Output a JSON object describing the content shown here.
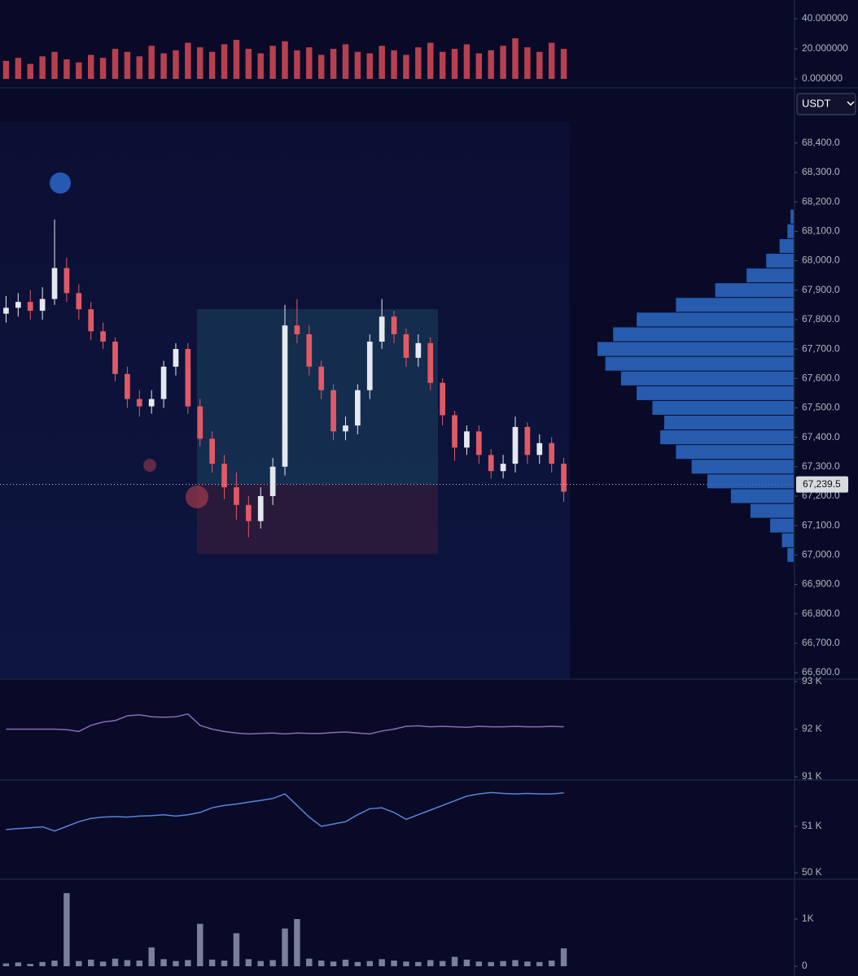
{
  "toolbar": {
    "currency": "USDT"
  },
  "chart_data": [
    {
      "type": "bar",
      "color": "#b8404e",
      "values": [
        12,
        14,
        10,
        15,
        18,
        13,
        11,
        16,
        14,
        20,
        18,
        15,
        22,
        17,
        19,
        24,
        21,
        18,
        23,
        26,
        20,
        17,
        22,
        25,
        19,
        21,
        16,
        20,
        23,
        18,
        17,
        22,
        19,
        16,
        21,
        24,
        18,
        20,
        23,
        17,
        19,
        22,
        27,
        21,
        18,
        24,
        20
      ],
      "ylim": [
        -5.9,
        52.4
      ],
      "yticks": [
        {
          "value": 0,
          "label": "0.000000"
        },
        {
          "value": 20,
          "label": "20.000000"
        },
        {
          "value": 40,
          "label": "40.000000"
        }
      ]
    },
    {
      "type": "candlestick",
      "up_color": "#e6e8f0",
      "down_color": "#e05a66",
      "open": [
        67820,
        67840,
        67860,
        67830,
        67870,
        67975,
        67890,
        67835,
        67760,
        67725,
        67615,
        67530,
        67505,
        67530,
        67640,
        67700,
        67505,
        67395,
        67310,
        67230,
        67170,
        67115,
        67200,
        67300,
        67780,
        67750,
        67640,
        67560,
        67420,
        67440,
        67560,
        67725,
        67810,
        67750,
        67670,
        67720,
        67585,
        67475,
        67365,
        67420,
        67340,
        67285,
        67310,
        67435,
        67340,
        67380,
        67310
      ],
      "high": [
        67880,
        67890,
        67900,
        67910,
        68140,
        68010,
        67920,
        67860,
        67790,
        67740,
        67640,
        67560,
        67560,
        67660,
        67720,
        67720,
        67530,
        67420,
        67340,
        67280,
        67200,
        67230,
        67330,
        67850,
        67870,
        67780,
        67660,
        67580,
        67470,
        67580,
        67750,
        67870,
        67830,
        67770,
        67750,
        67740,
        67600,
        67490,
        67440,
        67440,
        67360,
        67340,
        67470,
        67450,
        67410,
        67400,
        67330
      ],
      "low": [
        67790,
        67810,
        67800,
        67800,
        67850,
        67860,
        67800,
        67730,
        67700,
        67590,
        67500,
        67470,
        67480,
        67500,
        67610,
        67480,
        67370,
        67280,
        67190,
        67120,
        67060,
        67090,
        67170,
        67270,
        67720,
        67610,
        67530,
        67390,
        67390,
        67410,
        67530,
        67700,
        67720,
        67640,
        67640,
        67560,
        67440,
        67320,
        67340,
        67310,
        67260,
        67260,
        67280,
        67310,
        67310,
        67280,
        67180
      ],
      "close": [
        67840,
        67860,
        67830,
        67870,
        67975,
        67890,
        67835,
        67760,
        67725,
        67615,
        67530,
        67505,
        67530,
        67640,
        67700,
        67505,
        67395,
        67310,
        67230,
        67170,
        67115,
        67200,
        67300,
        67780,
        67750,
        67640,
        67560,
        67420,
        67440,
        67560,
        67725,
        67810,
        67750,
        67670,
        67720,
        67585,
        67475,
        67365,
        67420,
        67340,
        67285,
        67310,
        67435,
        67340,
        67380,
        67310,
        67215
      ],
      "last_price": {
        "value": 67239.5,
        "label": "67,239.5"
      },
      "ylim": [
        66578,
        68582
      ],
      "yticks": [
        {
          "value": 66600,
          "label": "66,600.0"
        },
        {
          "value": 66700,
          "label": "66,700.0"
        },
        {
          "value": 66800,
          "label": "66,800.0"
        },
        {
          "value": 66900,
          "label": "66,900.0"
        },
        {
          "value": 67000,
          "label": "67,000.0"
        },
        {
          "value": 67100,
          "label": "67,100.0"
        },
        {
          "value": 67200,
          "label": "67,200.0"
        },
        {
          "value": 67300,
          "label": "67,300.0"
        },
        {
          "value": 67400,
          "label": "67,400.0"
        },
        {
          "value": 67500,
          "label": "67,500.0"
        },
        {
          "value": 67600,
          "label": "67,600.0"
        },
        {
          "value": 67700,
          "label": "67,700.0"
        },
        {
          "value": 67800,
          "label": "67,800.0"
        },
        {
          "value": 67900,
          "label": "67,900.0"
        },
        {
          "value": 68000,
          "label": "68,000.0"
        },
        {
          "value": 68100,
          "label": "68,100.0"
        },
        {
          "value": 68200,
          "label": "68,200.0"
        },
        {
          "value": 68300,
          "label": "68,300.0"
        },
        {
          "value": 68400,
          "label": "68,400.0"
        }
      ]
    },
    {
      "type": "line",
      "color": "#8a6ab8",
      "values": [
        92000,
        92000,
        92000,
        92000,
        92000,
        91990,
        91950,
        92080,
        92150,
        92180,
        92280,
        92300,
        92260,
        92250,
        92260,
        92320,
        92080,
        92000,
        91950,
        91920,
        91900,
        91910,
        91920,
        91900,
        91920,
        91910,
        91910,
        91930,
        91940,
        91920,
        91900,
        91960,
        92000,
        92060,
        92070,
        92050,
        92060,
        92050,
        92040,
        92060,
        92050,
        92050,
        92060,
        92050,
        92050,
        92060,
        92050
      ],
      "ylim": [
        90950,
        93050
      ],
      "yticks": [
        {
          "value": 91000,
          "label": "91 K"
        },
        {
          "value": 92000,
          "label": "92 K"
        },
        {
          "value": 93000,
          "label": "93 K"
        }
      ]
    },
    {
      "type": "line",
      "color": "#5a84d8",
      "values": [
        50930,
        50950,
        50970,
        50990,
        50900,
        51000,
        51100,
        51170,
        51200,
        51210,
        51200,
        51220,
        51230,
        51250,
        51220,
        51250,
        51300,
        51400,
        51450,
        51480,
        51520,
        51560,
        51600,
        51700,
        51450,
        51200,
        51000,
        51050,
        51100,
        51250,
        51380,
        51400,
        51300,
        51150,
        51250,
        51350,
        51450,
        51550,
        51650,
        51700,
        51730,
        51710,
        51700,
        51710,
        51700,
        51700,
        51720
      ],
      "ylim": [
        49877,
        51982
      ],
      "yticks": [
        {
          "value": 50000,
          "label": "50 K"
        },
        {
          "value": 51000,
          "label": "51 K"
        }
      ]
    },
    {
      "type": "bar",
      "color": "#7a7f9a",
      "values": [
        60,
        80,
        50,
        90,
        120,
        1550,
        110,
        140,
        100,
        160,
        130,
        120,
        400,
        150,
        110,
        130,
        900,
        140,
        120,
        700,
        150,
        110,
        130,
        800,
        1000,
        160,
        120,
        100,
        140,
        90,
        110,
        150,
        120,
        100,
        90,
        130,
        110,
        200,
        140,
        100,
        90,
        110,
        130,
        100,
        90,
        120,
        380
      ],
      "ylim": [
        -207,
        1828
      ],
      "yticks": [
        0,
        {
          "value": 1000,
          "label": "1K"
        }
      ]
    },
    {
      "type": "profile",
      "color": "#2f6fd0",
      "levels": [
        67000,
        67050,
        67100,
        67150,
        67200,
        67250,
        67300,
        67350,
        67400,
        67450,
        67500,
        67550,
        67600,
        67650,
        67700,
        67750,
        67800,
        67850,
        67900,
        67950,
        68000,
        68050,
        68100,
        68150
      ],
      "values": [
        8,
        15,
        30,
        55,
        80,
        110,
        130,
        150,
        170,
        165,
        180,
        200,
        220,
        240,
        250,
        230,
        200,
        150,
        100,
        60,
        35,
        18,
        8,
        4
      ],
      "xlim": [
        0,
        280
      ],
      "ylim": [
        66578,
        68582
      ]
    }
  ]
}
